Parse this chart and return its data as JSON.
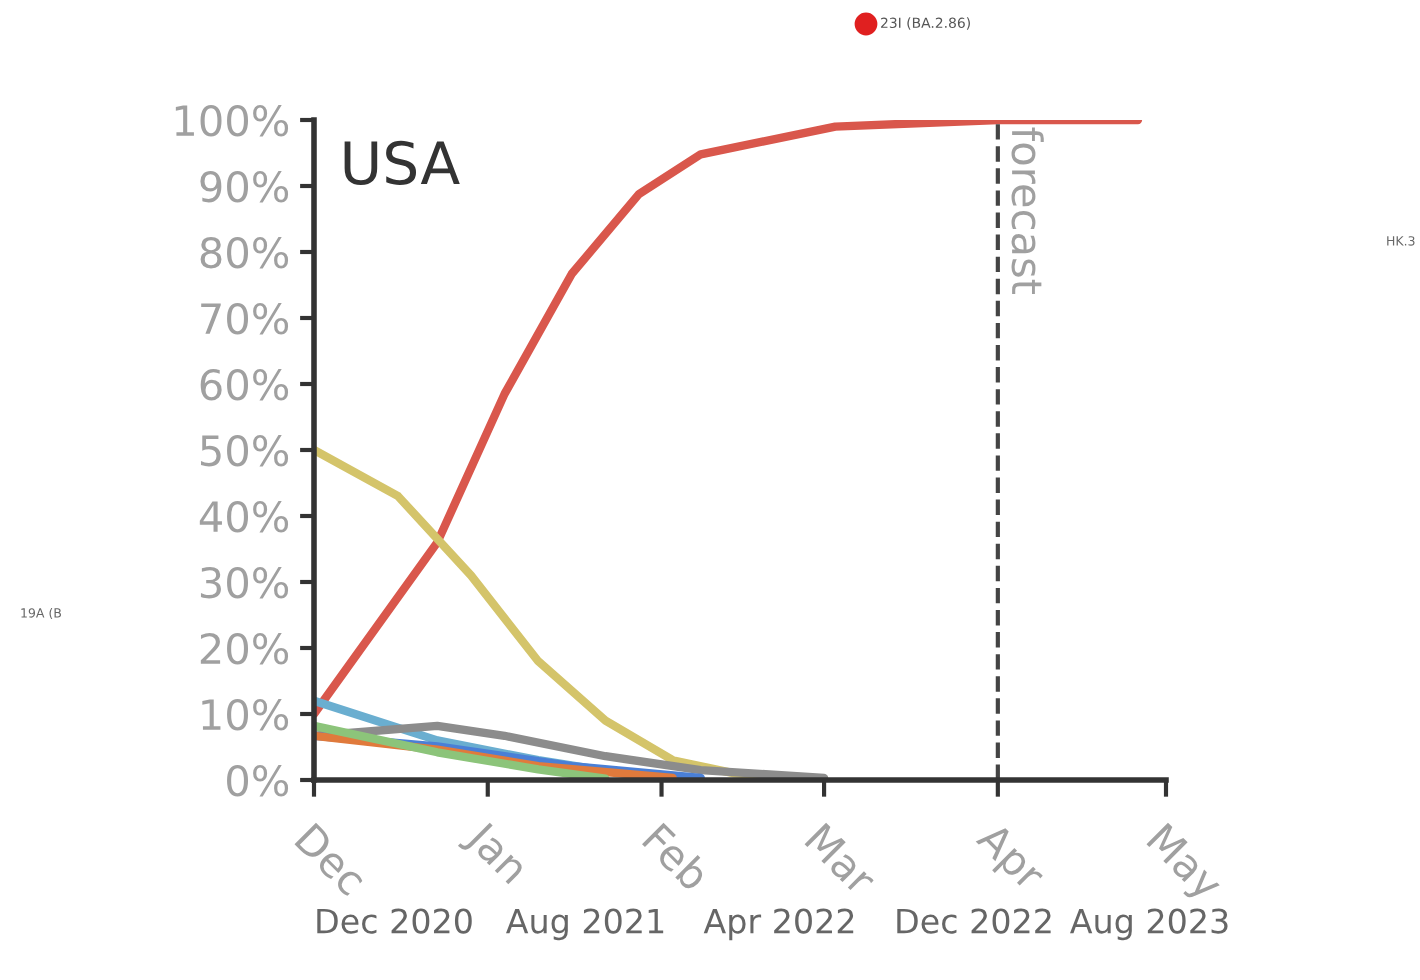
{
  "chart_data": {
    "type": "line",
    "title": "USA",
    "series": [
      {
        "color": "#d9574c",
        "x": [
          "2023-12-01",
          "2023-12-23",
          "2024-01-04",
          "2024-01-16",
          "2024-01-28",
          "2024-02-08",
          "2024-03-03",
          "2024-04-01",
          "2024-04-26"
        ],
        "values": [
          10,
          36,
          58.5,
          76.7,
          88.8,
          94.8,
          99,
          100,
          100
        ]
      },
      {
        "color": "#d4c46a",
        "x": [
          "2023-12-01",
          "2023-12-16",
          "2023-12-29",
          "2024-01-10",
          "2024-01-22",
          "2024-02-03",
          "2024-02-14",
          "2024-02-27",
          "2024-03-01"
        ],
        "values": [
          50,
          43,
          31,
          18,
          9,
          3,
          1,
          0.3,
          0.2
        ]
      },
      {
        "color": "#6aaed0",
        "x": [
          "2023-12-01",
          "2023-12-23",
          "2024-01-10",
          "2024-01-28"
        ],
        "values": [
          12,
          6,
          3,
          0.6
        ]
      },
      {
        "color": "#8c8c8c",
        "x": [
          "2023-12-01",
          "2023-12-23",
          "2024-01-04",
          "2024-01-22",
          "2024-02-08",
          "2024-03-01"
        ],
        "values": [
          6.7,
          8.2,
          6.7,
          3.6,
          1.5,
          0.3
        ]
      },
      {
        "color": "#4a7fd6",
        "x": [
          "2023-12-01",
          "2023-12-23",
          "2024-01-16",
          "2024-02-08"
        ],
        "values": [
          6.7,
          5.1,
          2.1,
          0.3
        ]
      },
      {
        "color": "#e07a3c",
        "x": [
          "2023-12-01",
          "2023-12-23",
          "2024-01-10",
          "2024-02-03"
        ],
        "values": [
          6.7,
          4.6,
          2.1,
          0.3
        ]
      },
      {
        "color": "#8cc47a",
        "x": [
          "2023-12-01",
          "2023-12-23",
          "2024-01-10",
          "2024-01-22"
        ],
        "values": [
          8.2,
          4.2,
          1.6,
          0.2
        ]
      }
    ],
    "xlim": [
      "2023-12-01",
      "2024-05-01"
    ],
    "xticks": [
      {
        "value": "2023-12-01",
        "label": "Dec"
      },
      {
        "value": "2024-01-01",
        "label": "Jan"
      },
      {
        "value": "2024-02-01",
        "label": "Feb"
      },
      {
        "value": "2024-03-01",
        "label": "Mar"
      },
      {
        "value": "2024-04-01",
        "label": "Apr"
      },
      {
        "value": "2024-05-01",
        "label": "May"
      }
    ],
    "ylim": [
      0,
      100
    ],
    "yticks": [
      {
        "value": 0,
        "label": "0%"
      },
      {
        "value": 10,
        "label": "10%"
      },
      {
        "value": 20,
        "label": "20%"
      },
      {
        "value": 30,
        "label": "30%"
      },
      {
        "value": 40,
        "label": "40%"
      },
      {
        "value": 50,
        "label": "50%"
      },
      {
        "value": 60,
        "label": "60%"
      },
      {
        "value": 70,
        "label": "70%"
      },
      {
        "value": 80,
        "label": "80%"
      },
      {
        "value": 90,
        "label": "90%"
      },
      {
        "value": 100,
        "label": "100%"
      }
    ],
    "ref_lines": [
      {
        "axis": "x",
        "value": "2024-04-01",
        "label": "forecast",
        "color": "#444444",
        "line_style": "dashed"
      }
    ],
    "annotations": [
      "Dec 2020",
      "Aug 2021",
      "Apr 2022",
      "Dec 2022",
      "Aug 2023",
      "23I (BA.2.86)",
      "19A (B",
      "HK.3"
    ],
    "grid": false,
    "legend": false
  }
}
